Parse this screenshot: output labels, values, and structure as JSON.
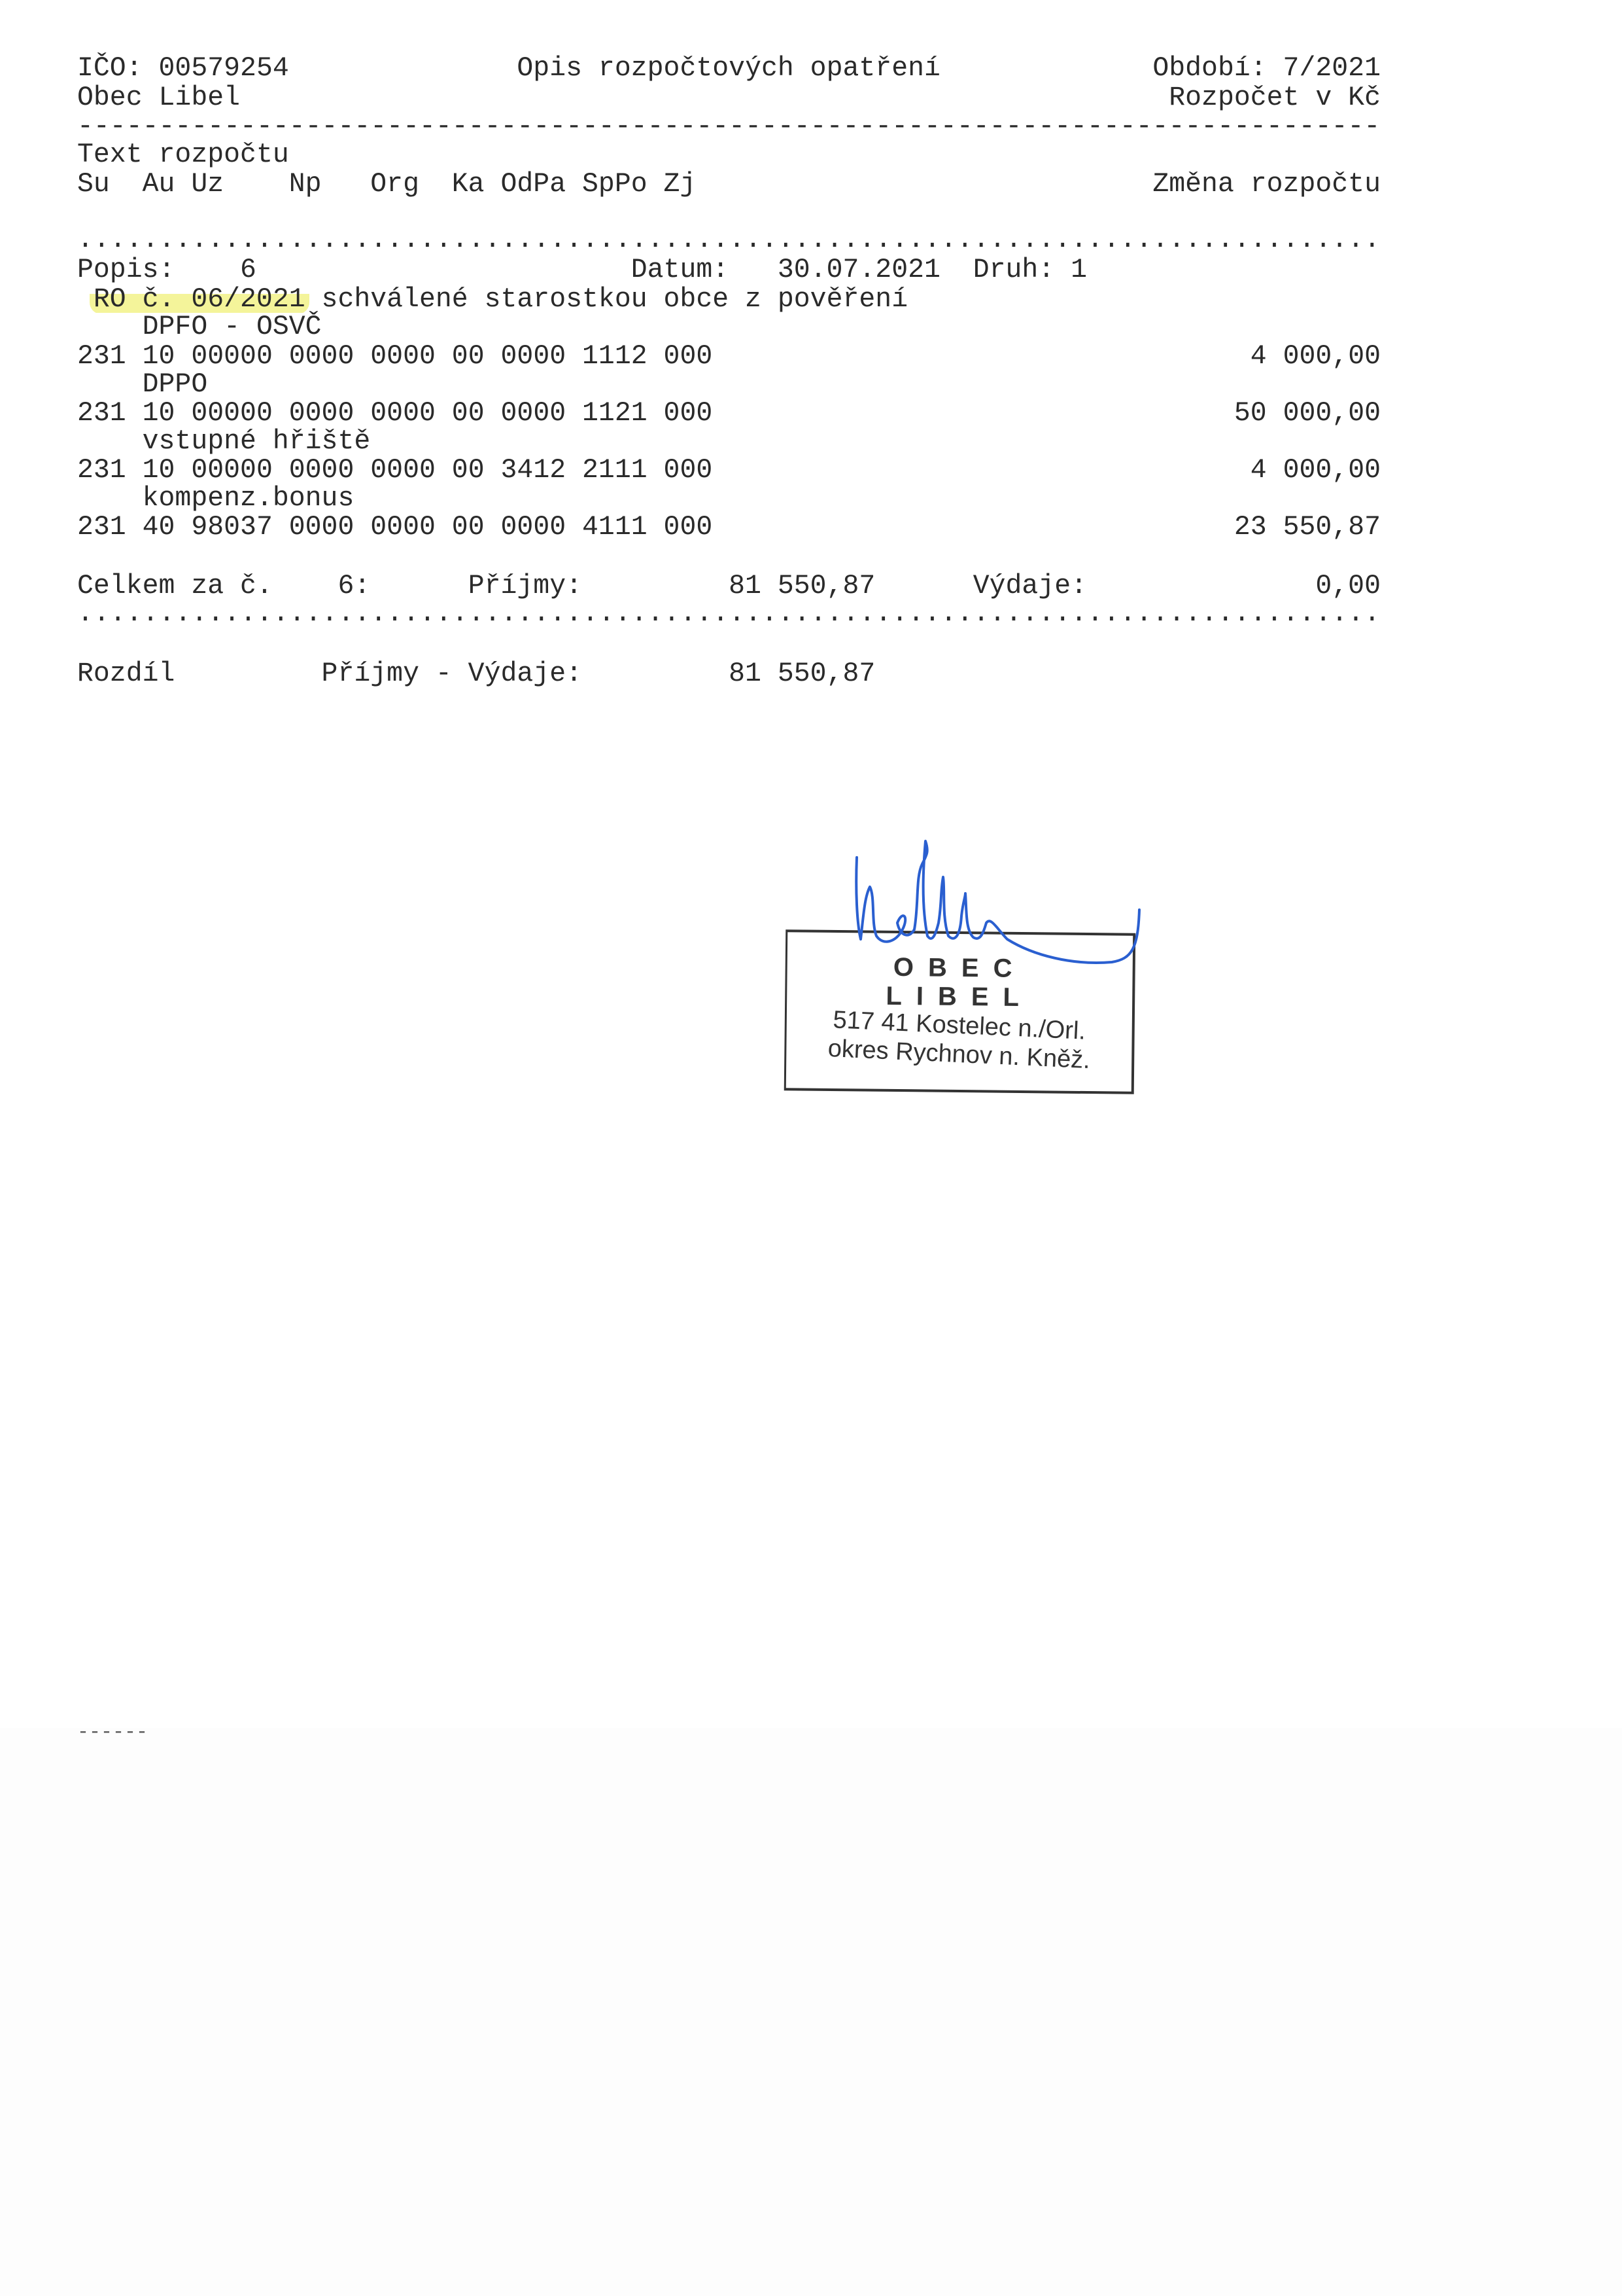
{
  "header": {
    "ico": "IČO: 00579254",
    "title": "Opis rozpočtových opatření",
    "period": "Období: 7/2021",
    "organization": "Obec Libel",
    "currency": "Rozpočet v Kč"
  },
  "columns": {
    "text_label": "Text rozpočtu",
    "su": "Su",
    "au": "Au",
    "uz": "Uz",
    "np": "Np",
    "org": "Org",
    "ka": "Ka",
    "odpa": "OdPa",
    "sppo": "SpPo",
    "zj": "Zj",
    "change": "Změna rozpočtu"
  },
  "measure": {
    "popis_label": "Popis:",
    "popis_value": "6",
    "datum_label": "Datum:",
    "datum_value": "30.07.2021",
    "druh_label": "Druh:",
    "druh_value": "1",
    "description_highlighted": "RO č. 06/2021",
    "description_rest": "schválené starostkou obce z pověření",
    "highlight_color": "#f0f078"
  },
  "items": [
    {
      "text": "DPFO - OSVČ",
      "code": "231 10 00000 0000 0000 00 0000 1112 000",
      "amount": "4 000,00"
    },
    {
      "text": "DPPO",
      "code": "231 10 00000 0000 0000 00 0000 1121 000",
      "amount": "50 000,00"
    },
    {
      "text": "vstupné hřiště",
      "code": "231 10 00000 0000 0000 00 3412 2111 000",
      "amount": "4 000,00"
    },
    {
      "text": "kompenz.bonus",
      "code": "231 40 98037 0000 0000 00 0000 4111 000",
      "amount": "23 550,87"
    }
  ],
  "totals": {
    "label": "Celkem za č.",
    "number": "6:",
    "income_label": "Příjmy:",
    "income_value": "81 550,87",
    "expense_label": "Výdaje:",
    "expense_value": "0,00"
  },
  "difference": {
    "label": "Rozdíl",
    "formula": "Příjmy - Výdaje:",
    "value": "81 550,87"
  },
  "stamp": {
    "line1": "OBEC",
    "line2": "LIBEL",
    "line3": "517 41 Kostelec n./Orl.",
    "line4": "okres Rychnov n. Kněž."
  },
  "signature_color": "#2a5fd0"
}
